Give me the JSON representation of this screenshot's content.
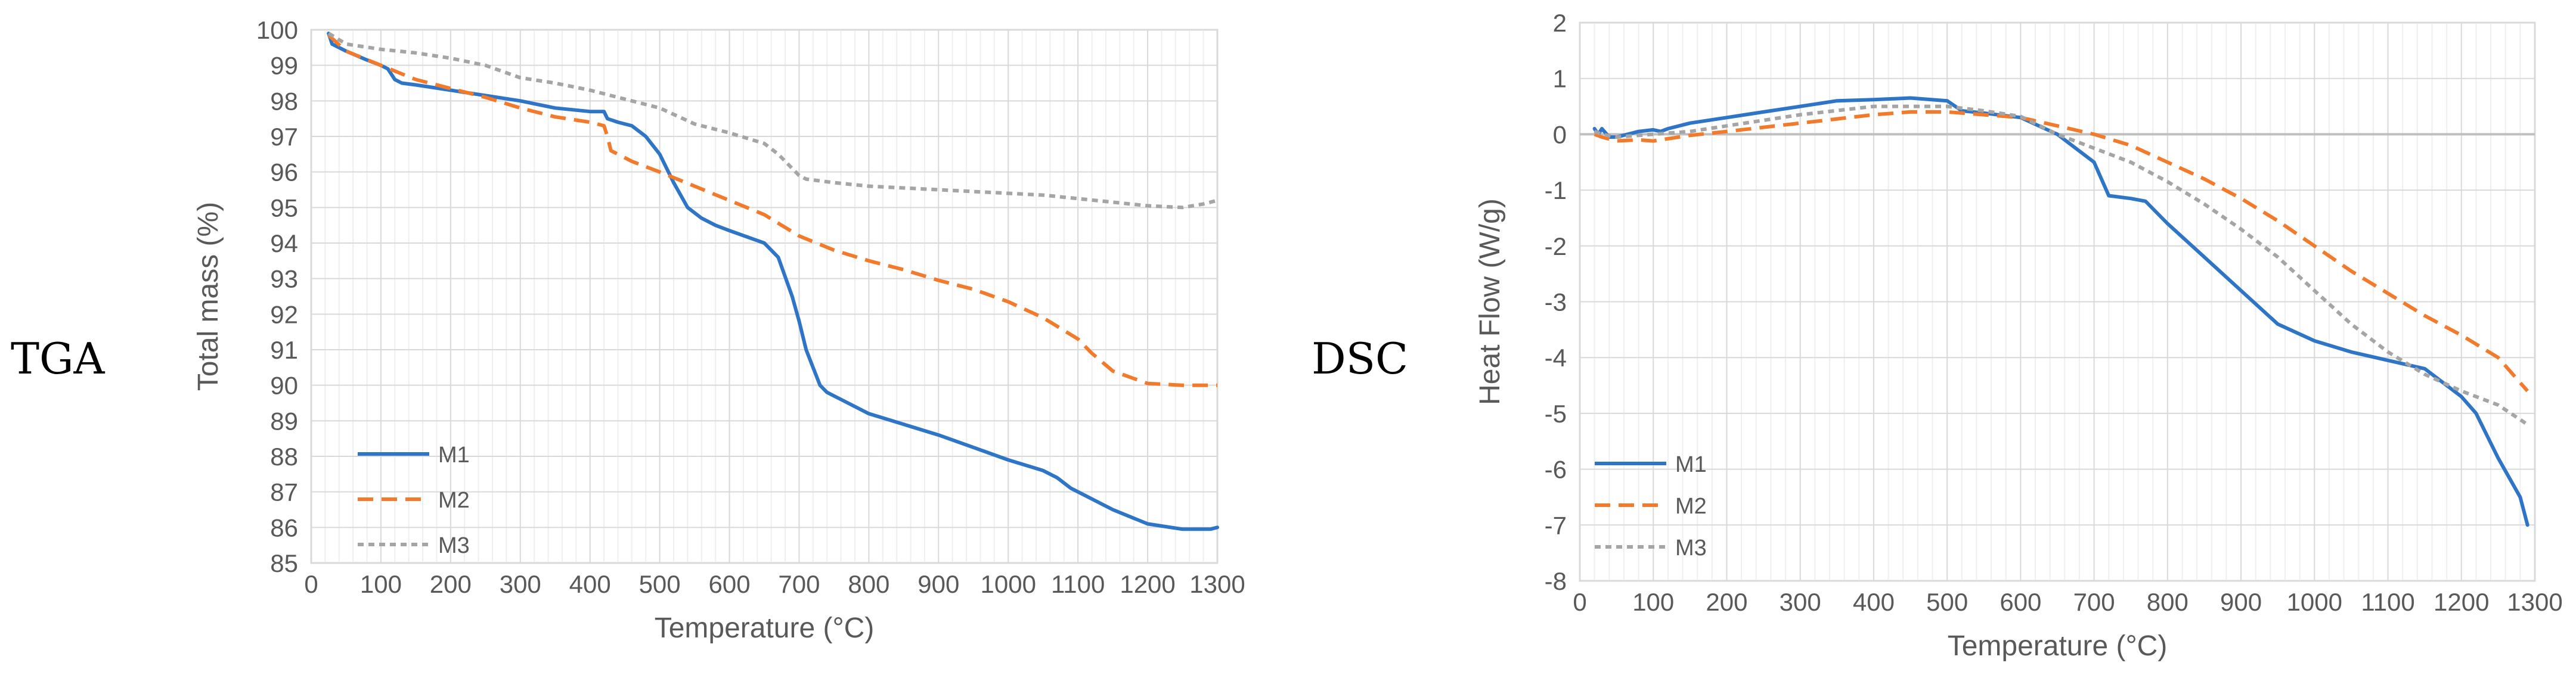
{
  "chart_data": [
    {
      "type": "line",
      "side_label": "TGA",
      "title": "",
      "xlabel": "Temperature (°C)",
      "ylabel": "Total mass (%)",
      "xlim": [
        0,
        1300
      ],
      "ylim": [
        85,
        100
      ],
      "x_ticks": [
        "0",
        "100",
        "200",
        "300",
        "400",
        "500",
        "600",
        "700",
        "800",
        "900",
        "1000",
        "1100",
        "1200",
        "1300"
      ],
      "y_ticks": [
        "85",
        "86",
        "87",
        "88",
        "89",
        "90",
        "91",
        "92",
        "93",
        "94",
        "95",
        "96",
        "97",
        "98",
        "99",
        "100"
      ],
      "grid": true,
      "legend_position": "bottom-left",
      "series": [
        {
          "name": "M1",
          "color": "#2E75C8",
          "dash": "solid",
          "x": [
            25,
            30,
            50,
            80,
            100,
            110,
            120,
            130,
            150,
            200,
            250,
            300,
            350,
            400,
            420,
            425,
            440,
            460,
            480,
            500,
            520,
            540,
            560,
            580,
            600,
            650,
            670,
            690,
            700,
            710,
            720,
            730,
            740,
            760,
            800,
            850,
            900,
            950,
            1000,
            1050,
            1070,
            1090,
            1110,
            1150,
            1200,
            1250,
            1290,
            1300
          ],
          "y": [
            99.9,
            99.6,
            99.4,
            99.15,
            99.0,
            98.9,
            98.6,
            98.5,
            98.45,
            98.3,
            98.15,
            98.0,
            97.8,
            97.7,
            97.7,
            97.5,
            97.4,
            97.3,
            97.0,
            96.5,
            95.7,
            95.0,
            94.7,
            94.5,
            94.35,
            94.0,
            93.6,
            92.5,
            91.8,
            91.0,
            90.5,
            90.0,
            89.8,
            89.6,
            89.2,
            88.9,
            88.6,
            88.25,
            87.9,
            87.6,
            87.4,
            87.1,
            86.9,
            86.5,
            86.1,
            85.95,
            85.95,
            86.0
          ]
        },
        {
          "name": "M2",
          "color": "#F27A2A",
          "dash": "dashed",
          "x": [
            25,
            50,
            100,
            150,
            200,
            250,
            300,
            350,
            400,
            420,
            425,
            430,
            440,
            460,
            500,
            550,
            600,
            650,
            700,
            750,
            800,
            850,
            900,
            950,
            1000,
            1050,
            1100,
            1120,
            1150,
            1200,
            1250,
            1300
          ],
          "y": [
            99.85,
            99.4,
            99.0,
            98.6,
            98.35,
            98.1,
            97.8,
            97.55,
            97.4,
            97.3,
            97.0,
            96.6,
            96.5,
            96.3,
            96.0,
            95.6,
            95.2,
            94.8,
            94.2,
            93.8,
            93.5,
            93.25,
            92.95,
            92.7,
            92.35,
            91.9,
            91.3,
            90.9,
            90.4,
            90.05,
            90.0,
            90.0
          ]
        },
        {
          "name": "M3",
          "color": "#A5A5A5",
          "dash": "dotted",
          "x": [
            25,
            50,
            100,
            150,
            200,
            250,
            300,
            350,
            400,
            450,
            500,
            550,
            600,
            650,
            670,
            690,
            700,
            710,
            750,
            800,
            850,
            900,
            950,
            1000,
            1050,
            1100,
            1150,
            1200,
            1250,
            1280,
            1300
          ],
          "y": [
            99.9,
            99.6,
            99.45,
            99.35,
            99.2,
            99.0,
            98.65,
            98.5,
            98.3,
            98.05,
            97.8,
            97.35,
            97.1,
            96.8,
            96.5,
            96.1,
            95.9,
            95.8,
            95.7,
            95.6,
            95.55,
            95.5,
            95.45,
            95.4,
            95.35,
            95.25,
            95.15,
            95.05,
            95.0,
            95.1,
            95.2
          ]
        }
      ]
    },
    {
      "type": "line",
      "side_label": "DSC",
      "title": "",
      "xlabel": "Temperature (°C)",
      "ylabel": "Heat Flow (W/g)",
      "xlim": [
        0,
        1300
      ],
      "ylim": [
        -8,
        2
      ],
      "x_ticks": [
        "0",
        "100",
        "200",
        "300",
        "400",
        "500",
        "600",
        "700",
        "800",
        "900",
        "1000",
        "1100",
        "1200",
        "1300"
      ],
      "y_ticks": [
        "-8",
        "-7",
        "-6",
        "-5",
        "-4",
        "-3",
        "-2",
        "-1",
        "0",
        "1",
        "2"
      ],
      "grid": true,
      "legend_position": "bottom-left",
      "series": [
        {
          "name": "M1",
          "color": "#2E75C8",
          "dash": "solid",
          "x": [
            20,
            25,
            30,
            40,
            50,
            80,
            100,
            110,
            120,
            150,
            200,
            250,
            300,
            350,
            400,
            450,
            500,
            520,
            550,
            600,
            650,
            700,
            720,
            750,
            770,
            800,
            850,
            900,
            950,
            1000,
            1050,
            1100,
            1150,
            1200,
            1220,
            1250,
            1280,
            1290
          ],
          "y": [
            0.1,
            0.0,
            0.1,
            -0.05,
            -0.05,
            0.05,
            0.08,
            0.05,
            0.1,
            0.2,
            0.3,
            0.4,
            0.5,
            0.6,
            0.62,
            0.65,
            0.6,
            0.42,
            0.38,
            0.3,
            0.0,
            -0.5,
            -1.1,
            -1.15,
            -1.2,
            -1.6,
            -2.2,
            -2.8,
            -3.4,
            -3.7,
            -3.9,
            -4.05,
            -4.2,
            -4.7,
            -5.0,
            -5.8,
            -6.5,
            -7.0
          ]
        },
        {
          "name": "M2",
          "color": "#F27A2A",
          "dash": "dashed",
          "x": [
            20,
            30,
            50,
            80,
            100,
            120,
            150,
            200,
            300,
            400,
            450,
            500,
            550,
            600,
            650,
            700,
            750,
            800,
            850,
            900,
            950,
            1000,
            1050,
            1100,
            1150,
            1200,
            1250,
            1290
          ],
          "y": [
            0.0,
            -0.05,
            -0.12,
            -0.1,
            -0.12,
            -0.08,
            -0.02,
            0.05,
            0.2,
            0.35,
            0.4,
            0.4,
            0.35,
            0.3,
            0.15,
            0.0,
            -0.2,
            -0.5,
            -0.8,
            -1.15,
            -1.55,
            -2.0,
            -2.45,
            -2.85,
            -3.25,
            -3.6,
            -4.0,
            -4.6
          ]
        },
        {
          "name": "M3",
          "color": "#A5A5A5",
          "dash": "dotted",
          "x": [
            20,
            30,
            50,
            100,
            150,
            200,
            300,
            400,
            500,
            550,
            600,
            650,
            700,
            750,
            800,
            850,
            900,
            950,
            1000,
            1050,
            1100,
            1150,
            1200,
            1250,
            1290
          ],
          "y": [
            0.05,
            0.0,
            -0.05,
            0.0,
            0.05,
            0.15,
            0.35,
            0.5,
            0.5,
            0.42,
            0.32,
            0.0,
            -0.25,
            -0.5,
            -0.85,
            -1.25,
            -1.7,
            -2.2,
            -2.8,
            -3.4,
            -3.9,
            -4.3,
            -4.6,
            -4.85,
            -5.2
          ]
        }
      ]
    }
  ]
}
